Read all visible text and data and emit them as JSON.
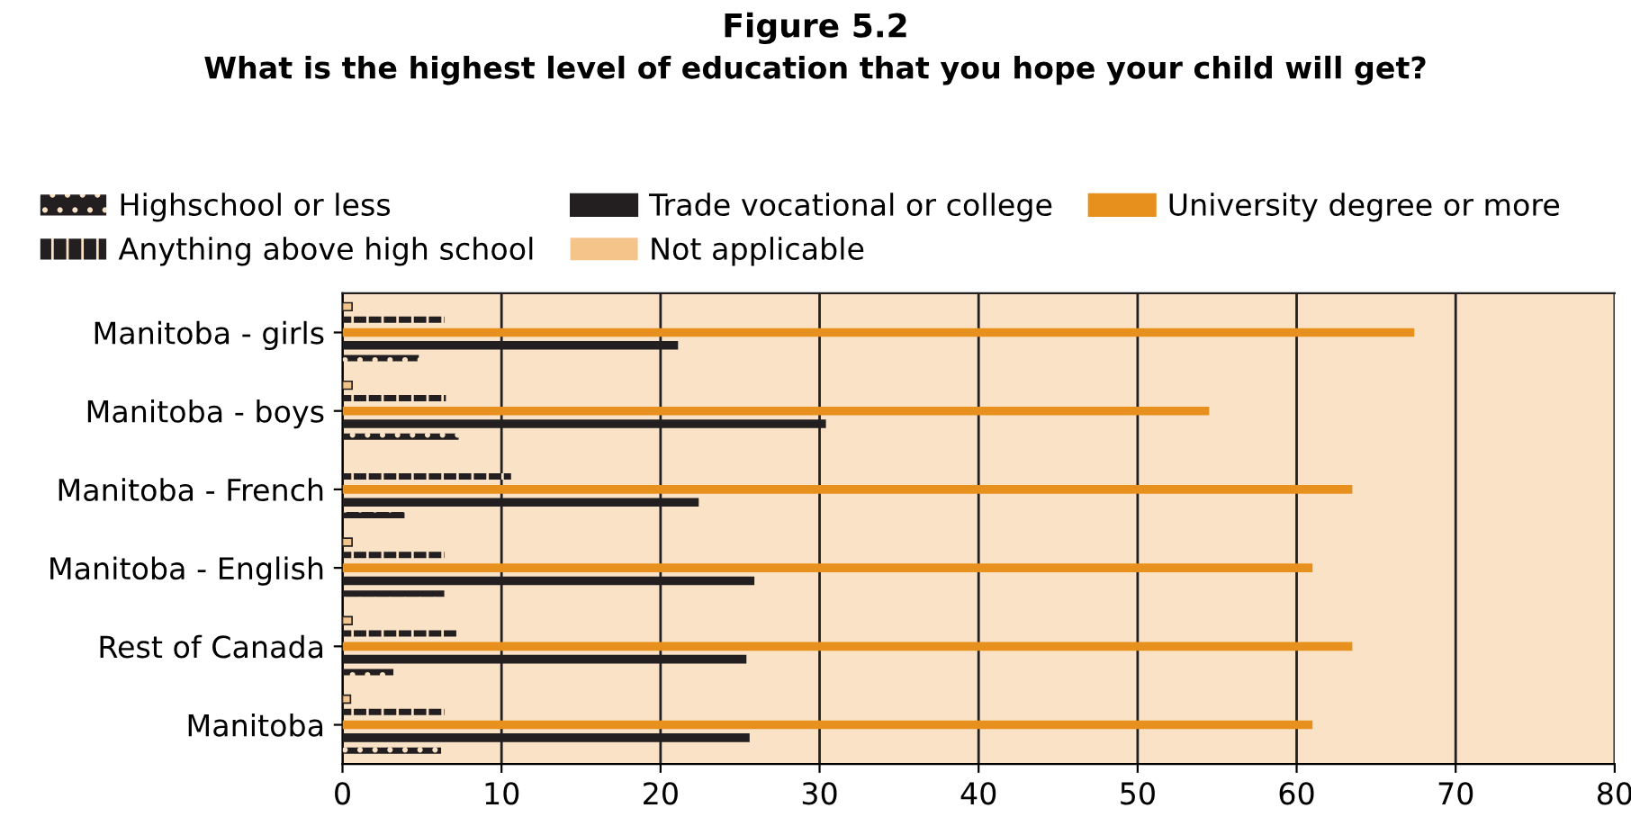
{
  "chart_data": {
    "type": "bar",
    "orientation": "horizontal",
    "title": "Figure 5.2",
    "subtitle": "What is the highest level of education that you hope your child will get?",
    "categories": [
      "Manitoba - girls",
      "Manitoba - boys",
      "Manitoba - French",
      "Manitoba - English",
      "Rest of Canada",
      "Manitoba"
    ],
    "series": [
      {
        "name": "Highschool or less",
        "color": "#231f20",
        "values": [
          4.8,
          7.3,
          3.9,
          6.4,
          3.2,
          6.2
        ]
      },
      {
        "name": "Trade vocational or college",
        "color": "#231f20",
        "values": [
          21.1,
          30.4,
          22.4,
          25.9,
          25.4,
          25.6
        ]
      },
      {
        "name": "University degree or more",
        "color": "#e8901e",
        "values": [
          67.4,
          54.5,
          63.5,
          61.0,
          63.5,
          61.0
        ]
      },
      {
        "name": "Anything above high school",
        "color": "#231f20",
        "values": [
          6.4,
          6.5,
          10.6,
          6.4,
          7.2,
          6.4
        ]
      },
      {
        "name": "Not applicable",
        "color": "#f5c48a",
        "values": [
          0.6,
          0.6,
          null,
          0.6,
          0.6,
          0.5
        ]
      }
    ],
    "xlim": [
      0,
      80
    ],
    "xticks": [
      0,
      10,
      20,
      30,
      40,
      50,
      60,
      70,
      80
    ],
    "grid": "x",
    "legend": "top"
  }
}
